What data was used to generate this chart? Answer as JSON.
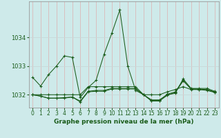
{
  "title": "Graphe pression niveau de la mer (hPa)",
  "background_color": "#ceeaea",
  "grid_color_v": "#dbb8b8",
  "grid_color_h": "#c8d8d8",
  "line_color": "#1a5c1a",
  "xlim": [
    -0.5,
    23.5
  ],
  "ylim": [
    1031.55,
    1035.25
  ],
  "yticks": [
    1032,
    1033,
    1034
  ],
  "xticks": [
    0,
    1,
    2,
    3,
    4,
    5,
    6,
    7,
    8,
    9,
    10,
    11,
    12,
    13,
    14,
    15,
    16,
    17,
    18,
    19,
    20,
    21,
    22,
    23
  ],
  "series": [
    {
      "x": [
        0,
        1,
        2,
        3,
        4,
        5,
        6,
        7,
        8,
        9,
        10,
        11,
        12,
        13,
        14,
        15,
        16,
        17,
        18,
        19,
        20,
        21,
        22,
        23
      ],
      "y": [
        1032.6,
        1032.3,
        1032.7,
        1033.0,
        1033.35,
        1033.3,
        1031.9,
        1032.25,
        1032.5,
        1033.4,
        1034.15,
        1034.95,
        1033.0,
        1032.15,
        1032.0,
        1031.82,
        1031.82,
        1032.0,
        1032.05,
        1032.55,
        1032.22,
        1032.22,
        1032.22,
        1032.12
      ]
    },
    {
      "x": [
        0,
        1,
        2,
        3,
        4,
        5,
        6,
        7,
        8,
        9,
        10,
        11,
        12,
        13,
        14,
        15,
        16,
        17,
        18,
        19,
        20,
        21,
        22,
        23
      ],
      "y": [
        1032.0,
        1032.0,
        1032.0,
        1032.0,
        1032.0,
        1032.0,
        1032.0,
        1032.28,
        1032.28,
        1032.28,
        1032.28,
        1032.28,
        1032.28,
        1032.28,
        1032.0,
        1032.0,
        1032.0,
        1032.1,
        1032.18,
        1032.28,
        1032.18,
        1032.18,
        1032.18,
        1032.08
      ]
    },
    {
      "x": [
        0,
        1,
        2,
        3,
        4,
        5,
        6,
        7,
        8,
        9,
        10,
        11,
        12,
        13,
        14,
        15,
        16,
        17,
        18,
        19,
        20,
        21,
        22,
        23
      ],
      "y": [
        1032.0,
        1031.95,
        1031.88,
        1031.88,
        1031.88,
        1031.92,
        1031.75,
        1032.1,
        1032.12,
        1032.12,
        1032.2,
        1032.2,
        1032.2,
        1032.2,
        1032.0,
        1031.78,
        1031.78,
        1031.98,
        1032.08,
        1032.48,
        1032.2,
        1032.18,
        1032.15,
        1032.08
      ]
    },
    {
      "x": [
        0,
        1,
        2,
        3,
        4,
        5,
        6,
        7,
        8,
        9,
        10,
        11,
        12,
        13,
        14,
        15,
        16,
        17,
        18,
        19,
        20,
        21,
        22,
        23
      ],
      "y": [
        1032.0,
        1031.95,
        1031.88,
        1031.88,
        1031.9,
        1031.92,
        1031.78,
        1032.12,
        1032.15,
        1032.15,
        1032.22,
        1032.22,
        1032.22,
        1032.22,
        1032.0,
        1031.8,
        1031.8,
        1032.02,
        1032.1,
        1032.5,
        1032.2,
        1032.2,
        1032.18,
        1032.1
      ]
    }
  ],
  "spine_color": "#999999",
  "tick_label_size": 5.5,
  "xlabel_size": 6.5
}
